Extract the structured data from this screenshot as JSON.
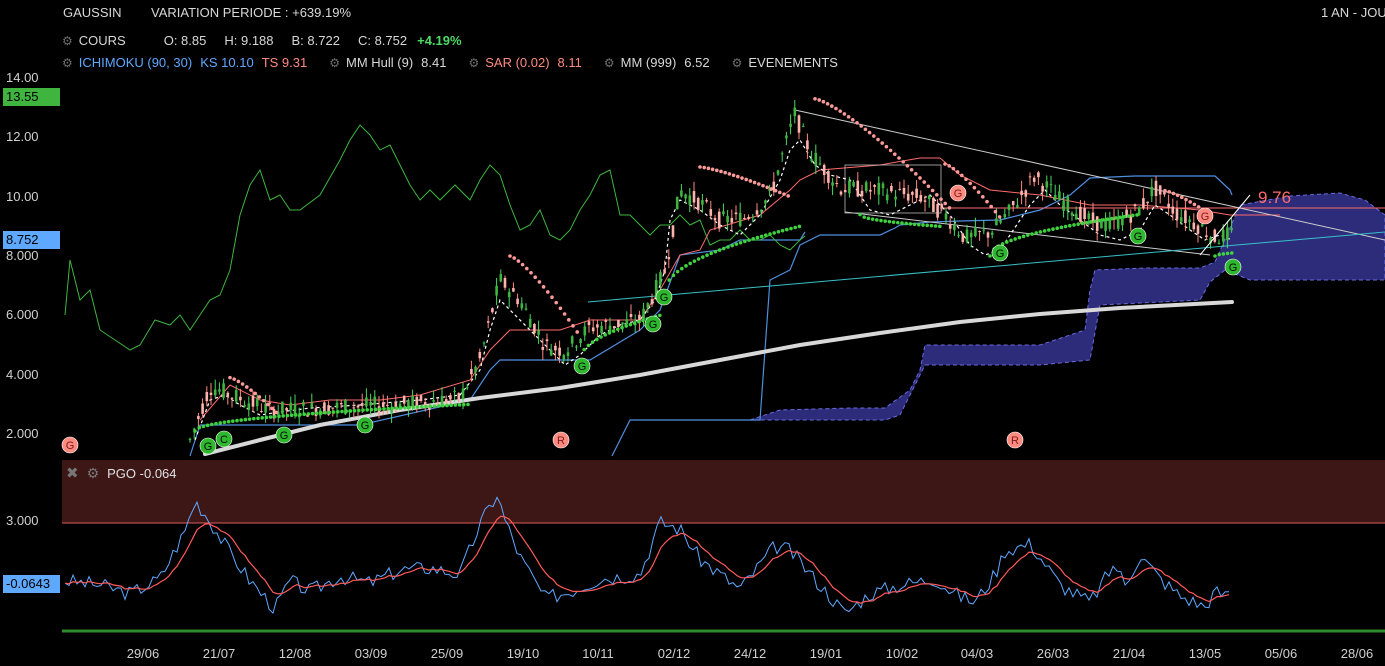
{
  "header": {
    "symbol": "GAUSSIN",
    "variation": "VARIATION PERIODE : +639.19%",
    "period": "1 AN - JOU"
  },
  "quote": {
    "cours_label": "COURS",
    "open": "O: 8.85",
    "high": "H: 9.188",
    "low": "B: 8.722",
    "close": "C: 8.752",
    "change": "+4.19%"
  },
  "indicators": {
    "ichimoku": "ICHIMOKU (90, 30)",
    "ks": "KS 10.10",
    "ts": "TS 9.31",
    "hull_label": "MM Hull (9)",
    "hull_value": "8.41",
    "sar_label": "SAR (0.02)",
    "sar_value": "8.11",
    "mm999_label": "MM (999)",
    "mm999_value": "6.52",
    "events": "EVENEMENTS"
  },
  "price_axis": {
    "ticks": [
      "14.00",
      "12.00",
      "10.00",
      "8.000",
      "6.000",
      "4.000",
      "2.000"
    ],
    "badge_green": "13.55",
    "badge_blue": "8.752",
    "target_label": "9.76"
  },
  "pgo": {
    "label": "PGO -0.064",
    "upper": "3.000",
    "current": "-0.0643"
  },
  "x_axis": [
    "29/06",
    "21/07",
    "12/08",
    "03/09",
    "25/09",
    "19/10",
    "10/11",
    "02/12",
    "24/12",
    "19/01",
    "10/02",
    "04/03",
    "26/03",
    "21/04",
    "13/05",
    "05/06",
    "28/06"
  ],
  "event_markers": [
    {
      "letter": "G",
      "kind": "event"
    },
    {
      "letter": "R",
      "kind": "event"
    },
    {
      "letter": "R",
      "kind": "event"
    }
  ],
  "colors": {
    "background": "#000000",
    "up": "#4cd964",
    "down": "#ff8a80",
    "blue": "#5fa8ff",
    "cloud": "#2c2c7a",
    "pgo_zone": "#3d1616"
  },
  "chart_data": [
    {
      "type": "line",
      "title": "GAUSSIN",
      "ylim": [
        1.5,
        14.5
      ],
      "series": [
        {
          "name": "COURS",
          "x": [
            "29/06",
            "21/07",
            "12/08",
            "03/09",
            "25/09",
            "19/10",
            "10/11",
            "02/12",
            "24/12",
            "19/01",
            "10/02",
            "04/03",
            "26/03",
            "21/04",
            "13/05"
          ],
          "values": [
            2.0,
            3.6,
            2.8,
            3.0,
            3.2,
            7.2,
            5.2,
            10.2,
            9.5,
            12.5,
            10.0,
            8.6,
            10.8,
            9.6,
            8.752
          ]
        },
        {
          "name": "MM (999)",
          "x": [
            "21/07",
            "12/08",
            "03/09",
            "25/09",
            "19/10",
            "10/11",
            "02/12",
            "24/12",
            "19/01",
            "10/02",
            "04/03",
            "26/03",
            "21/04",
            "13/05"
          ],
          "values": [
            1.6,
            2.2,
            2.6,
            3.0,
            3.5,
            4.0,
            4.5,
            4.9,
            5.3,
            5.7,
            6.0,
            6.2,
            6.35,
            6.52
          ]
        }
      ]
    },
    {
      "type": "line",
      "title": "PGO -0.064",
      "ylim": [
        -1.5,
        4.5
      ],
      "series": [
        {
          "name": "PGO",
          "x": [
            "29/06",
            "21/07",
            "12/08",
            "03/09",
            "25/09",
            "19/10",
            "10/11",
            "02/12",
            "24/12",
            "19/01",
            "10/02",
            "04/03",
            "26/03",
            "21/04",
            "13/05"
          ],
          "values": [
            0.2,
            3.5,
            -0.5,
            0.8,
            0.9,
            3.8,
            -0.6,
            3.0,
            1.0,
            2.6,
            0.5,
            -0.6,
            2.6,
            -0.5,
            -0.0643
          ]
        }
      ]
    }
  ]
}
